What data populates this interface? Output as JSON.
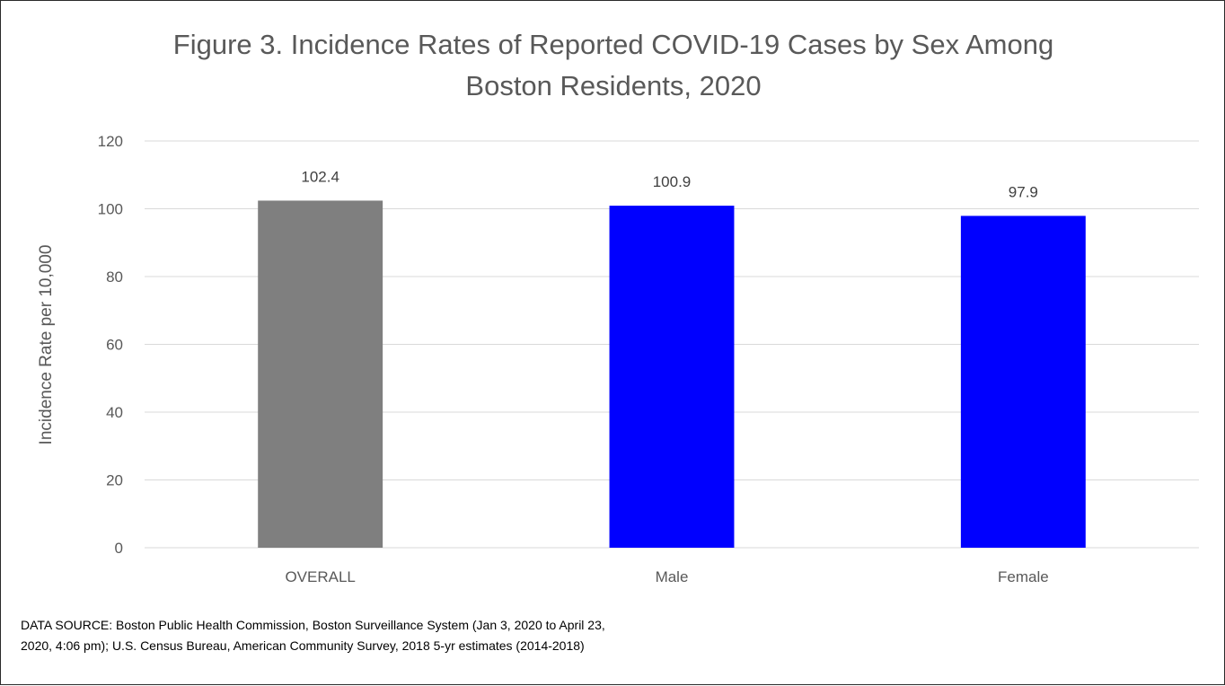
{
  "chart_data": {
    "type": "bar",
    "title_lines": [
      "Figure 3. Incidence Rates of Reported COVID-19 Cases by Sex Among",
      "Boston Residents, 2020"
    ],
    "ylabel": "Incidence Rate per 10,000",
    "xlabel": "",
    "categories": [
      "OVERALL",
      "Male",
      "Female"
    ],
    "values": [
      102.4,
      100.9,
      97.9
    ],
    "data_labels": [
      "102.4",
      "100.9",
      "97.9"
    ],
    "bar_colors": [
      "#7f7f7f",
      "#0000ff",
      "#0000ff"
    ],
    "ylim": [
      0,
      120
    ],
    "yticks": [
      0,
      20,
      40,
      60,
      80,
      100,
      120
    ],
    "grid": true,
    "legend": "none"
  },
  "source_lines": [
    "DATA SOURCE: Boston Public Health Commission, Boston Surveillance System (Jan 3, 2020 to April 23,",
    "2020, 4:06 pm); U.S. Census Bureau, American Community Survey, 2018 5-yr estimates (2014-2018)"
  ],
  "colors": {
    "gridline": "#d9d9d9",
    "axis_text": "#595959"
  }
}
